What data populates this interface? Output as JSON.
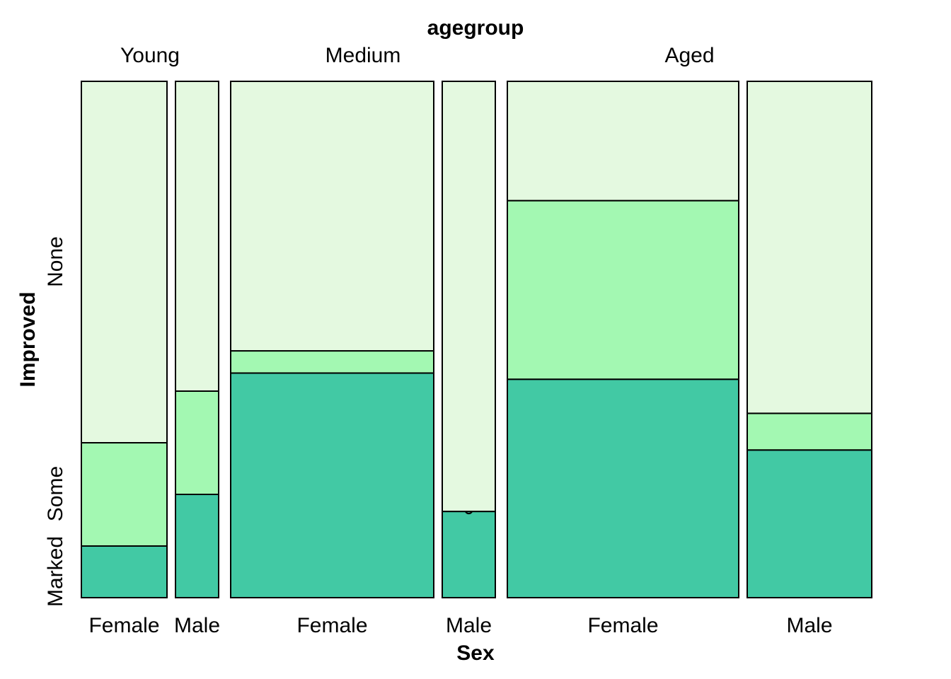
{
  "chart_data": {
    "type": "mosaic",
    "top_variable": "agegroup",
    "x_variable": "Sex",
    "y_variable": "Improved",
    "age_groups": [
      "Young",
      "Medium",
      "Aged"
    ],
    "sexes": [
      "Female",
      "Male"
    ],
    "improved_levels": [
      "Marked",
      "Some",
      "None"
    ],
    "colors": {
      "Marked": "#42c9a4",
      "Some": "#a3f8b2",
      "None": "#e4f9e0"
    },
    "column_widths": [
      121,
      61,
      287,
      75,
      327,
      176
    ],
    "cells": [
      {
        "agegroup": "Young",
        "sex": "Female",
        "proportions": {
          "Marked": 0.1,
          "Some": 0.2,
          "None": 0.7
        }
      },
      {
        "agegroup": "Young",
        "sex": "Male",
        "proportions": {
          "Marked": 0.2,
          "Some": 0.2,
          "None": 0.6
        }
      },
      {
        "agegroup": "Medium",
        "sex": "Female",
        "proportions": {
          "Marked": 0.435,
          "Some": 0.043,
          "None": 0.522
        }
      },
      {
        "agegroup": "Medium",
        "sex": "Male",
        "proportions": {
          "Marked": 0.167,
          "Some": 0.0,
          "None": 0.833
        }
      },
      {
        "agegroup": "Aged",
        "sex": "Female",
        "proportions": {
          "Marked": 0.423,
          "Some": 0.346,
          "None": 0.231
        }
      },
      {
        "agegroup": "Aged",
        "sex": "Male",
        "proportions": {
          "Marked": 0.286,
          "Some": 0.071,
          "None": 0.643
        }
      }
    ]
  }
}
